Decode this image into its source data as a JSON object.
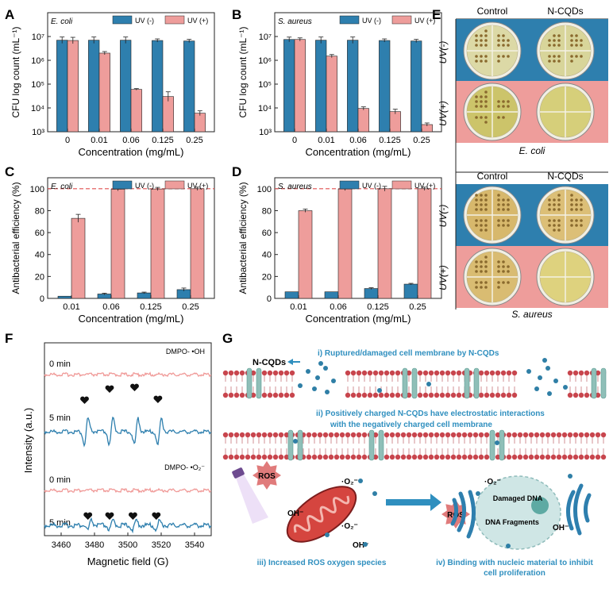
{
  "colors": {
    "uv_minus": "#2e7fae",
    "uv_plus": "#ee9d9b",
    "dash": "#e05050",
    "esr_0min": "#f09a98",
    "esr_5min": "#2e7fae",
    "membrane": "#c8454d",
    "label_blue": "#2f8fbf"
  },
  "axis_labels": {
    "cfu_y": "CFU log count (mL⁻¹)",
    "eff_y": "Antibacterial efficiency (%)",
    "conc_x": "Concentration (mg/mL)",
    "esr_y": "Intensity (a.u.)",
    "esr_x": "Magnetic field (G)"
  },
  "chart_data": [
    {
      "panel": "A",
      "type": "bar",
      "organism": "E. coli",
      "ylabel": "CFU log count (mL⁻¹)",
      "xlabel": "Concentration (mg/mL)",
      "yscale": "log",
      "ylim": [
        1000,
        100000000
      ],
      "yticks": [
        "10³",
        "10⁴",
        "10⁵",
        "10⁶",
        "10⁷"
      ],
      "categories": [
        "0",
        "0.01",
        "0.06",
        "0.125",
        "0.25"
      ],
      "series": [
        {
          "name": "UV (-)",
          "values": [
            7000000,
            7000000,
            7000000,
            6800000,
            6500000
          ]
        },
        {
          "name": "UV (+)",
          "values": [
            6800000,
            2000000,
            60000,
            30000,
            6000
          ]
        }
      ]
    },
    {
      "panel": "B",
      "type": "bar",
      "organism": "S. aureus",
      "ylabel": "CFU log count (mL⁻¹)",
      "xlabel": "Concentration (mg/mL)",
      "yscale": "log",
      "ylim": [
        1000,
        100000000
      ],
      "yticks": [
        "10³",
        "10⁴",
        "10⁵",
        "10⁶",
        "10⁷"
      ],
      "categories": [
        "0",
        "0.01",
        "0.06",
        "0.125",
        "0.25"
      ],
      "series": [
        {
          "name": "UV (-)",
          "values": [
            7500000,
            7000000,
            7000000,
            6800000,
            6500000
          ]
        },
        {
          "name": "UV (+)",
          "values": [
            7500000,
            1500000,
            9500,
            7000,
            2000
          ]
        }
      ]
    },
    {
      "panel": "C",
      "type": "bar",
      "organism": "E. coli",
      "ylabel": "Antibacterial efficiency (%)",
      "xlabel": "Concentration (mg/mL)",
      "ylim": [
        0,
        110
      ],
      "yticks": [
        "0",
        "20",
        "40",
        "60",
        "80",
        "100"
      ],
      "categories": [
        "0.01",
        "0.06",
        "0.125",
        "0.25"
      ],
      "series": [
        {
          "name": "UV (-)",
          "values": [
            2,
            4,
            5,
            8
          ]
        },
        {
          "name": "UV (+)",
          "values": [
            73,
            99.5,
            99.8,
            100
          ]
        }
      ]
    },
    {
      "panel": "D",
      "type": "bar",
      "organism": "S. aureus",
      "ylabel": "Antibacterial efficiency (%)",
      "xlabel": "Concentration (mg/mL)",
      "ylim": [
        0,
        110
      ],
      "yticks": [
        "0",
        "20",
        "40",
        "60",
        "80",
        "100"
      ],
      "categories": [
        "0.01",
        "0.06",
        "0.125",
        "0.25"
      ],
      "series": [
        {
          "name": "UV (-)",
          "values": [
            6,
            6,
            9,
            13
          ]
        },
        {
          "name": "UV (+)",
          "values": [
            80,
            99.8,
            100,
            100
          ]
        }
      ]
    },
    {
      "panel": "F",
      "type": "line",
      "ylabel": "Intensity (a.u.)",
      "xlabel": "Magnetic field (G)",
      "xlim": [
        3450,
        3550
      ],
      "xticks": [
        "3460",
        "3480",
        "3500",
        "3520",
        "3540"
      ],
      "traces": [
        {
          "probe": "DMPO- •OH",
          "time": "0 min"
        },
        {
          "probe": "DMPO- •OH",
          "time": "5 min",
          "peaks": [
            3475,
            3490,
            3505,
            3519
          ]
        },
        {
          "probe": "DMPO- •O₂⁻",
          "time": "0 min"
        },
        {
          "probe": "DMPO- •O₂⁻",
          "time": "5 min",
          "peaks": [
            3477,
            3490,
            3504,
            3518
          ]
        }
      ]
    }
  ],
  "panel_letters": [
    "A",
    "B",
    "C",
    "D",
    "E",
    "F",
    "G"
  ],
  "legend": {
    "uv_minus": "UV (-)",
    "uv_plus": "UV (+)"
  },
  "panelE": {
    "col_control": "Control",
    "col_ncqds": "N-CQDs",
    "row_minus": "UV(-)",
    "row_plus": "UV(+)",
    "caption_top": "E. coli",
    "caption_bottom": "S. aureus"
  },
  "panelF": {
    "probe_oh": "DMPO- •OH",
    "probe_o2": "DMPO- •O₂⁻",
    "time0": "0 min",
    "time5": "5 min"
  },
  "panelG": {
    "ncqds": "N-CQDs",
    "step1": "i) Ruptured/damaged cell membrane by N-CQDs",
    "step2a": "ii) Positively charged N-CQDs have electrostatic interactions",
    "step2b": "with the negatively charged cell membrane",
    "ros": "ROS",
    "o2": "·O₂⁻",
    "oh": "OH⁻",
    "damaged_dna": "Damaged DNA",
    "dna_fragments": "DNA Fragments",
    "step3": "iii) Increased ROS oxygen species",
    "step4a": "iv) Binding with nucleic material to inhibit",
    "step4b": "cell proliferation"
  }
}
